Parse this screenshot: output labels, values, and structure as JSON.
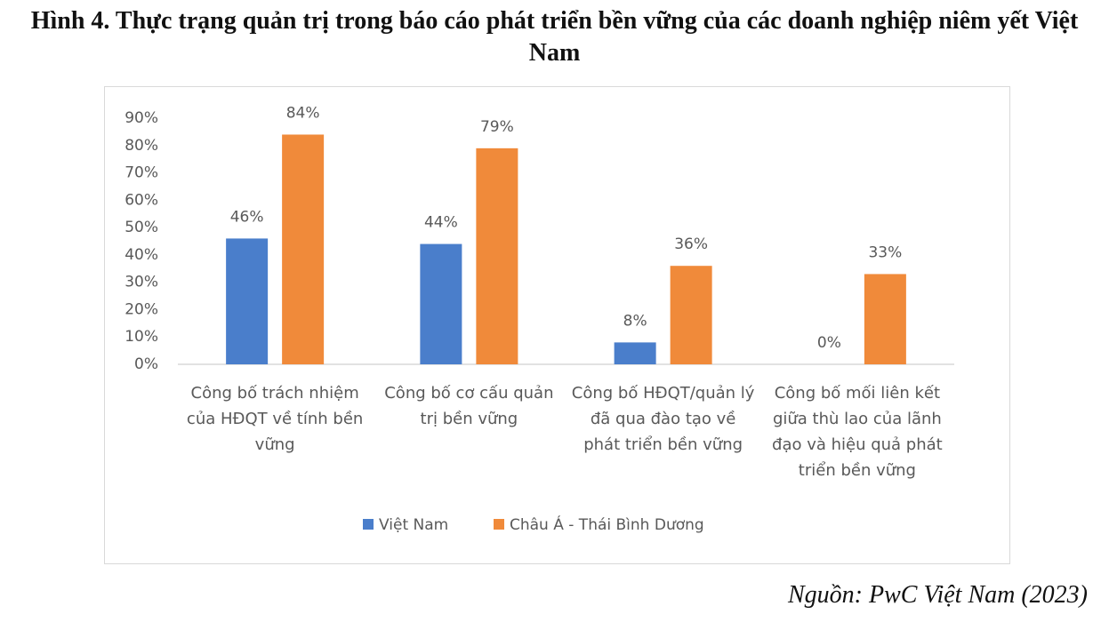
{
  "chart_data": {
    "type": "bar",
    "title": "Hình 4. Thực trạng quản trị trong báo cáo phát triển bền vững của các doanh nghiệp niêm yết Việt Nam",
    "source": "Nguồn: PwC Việt Nam (2023)",
    "categories": [
      "Công bố trách nhiệm của HĐQT về tính bền vững",
      "Công bố cơ cấu quản trị bền vững",
      "Công bố HĐQT/quản lý đã qua đào tạo về phát triển bền vững",
      "Công bố mối liên kết giữa thù lao của lãnh đạo và hiệu quả phát triển bền vững"
    ],
    "series": [
      {
        "name": "Việt Nam",
        "color": "#4a7ecb",
        "values": [
          46,
          44,
          8,
          0
        ],
        "value_labels": [
          "46%",
          "44%",
          "8%",
          "0%"
        ]
      },
      {
        "name": "Châu Á - Thái Bình Dương",
        "color": "#f08a3a",
        "values": [
          84,
          79,
          36,
          33
        ],
        "value_labels": [
          "84%",
          "79%",
          "36%",
          "33%"
        ]
      }
    ],
    "ylim": [
      0,
      90
    ],
    "yticks": [
      {
        "value": 0,
        "label": "0%"
      },
      {
        "value": 10,
        "label": "10%"
      },
      {
        "value": 20,
        "label": "20%"
      },
      {
        "value": 30,
        "label": "30%"
      },
      {
        "value": 40,
        "label": "40%"
      },
      {
        "value": 50,
        "label": "50%"
      },
      {
        "value": 60,
        "label": "60%"
      },
      {
        "value": 70,
        "label": "70%"
      },
      {
        "value": 80,
        "label": "80%"
      },
      {
        "value": 90,
        "label": "90%"
      }
    ],
    "grid": false,
    "legend": "bottom"
  }
}
